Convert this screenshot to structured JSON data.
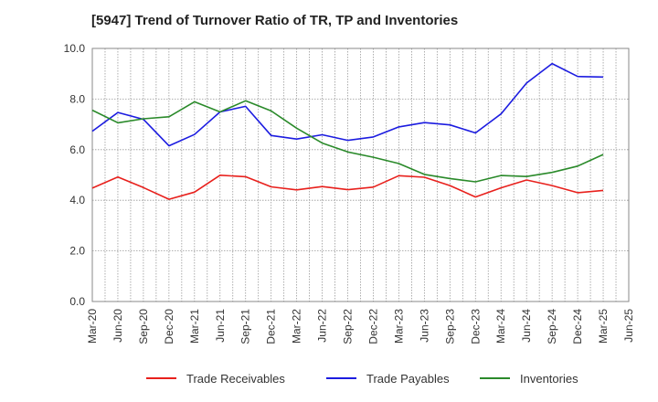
{
  "chart_data": {
    "type": "line",
    "title": "[5947]  Trend of Turnover Ratio of TR, TP and Inventories",
    "xlabel": "",
    "ylabel": "",
    "ylim": [
      0,
      10
    ],
    "yticks": [
      "0.0",
      "2.0",
      "4.0",
      "6.0",
      "8.0",
      "10.0"
    ],
    "xtick_labels": [
      "Mar-20",
      "Jun-20",
      "Sep-20",
      "Dec-20",
      "Mar-21",
      "Jun-21",
      "Sep-21",
      "Dec-21",
      "Mar-22",
      "Jun-22",
      "Sep-22",
      "Dec-22",
      "Mar-23",
      "Jun-23",
      "Sep-23",
      "Dec-23",
      "Mar-24",
      "Jun-24",
      "Sep-24",
      "Dec-24",
      "Mar-25",
      "Jun-25"
    ],
    "x": [
      "Mar-20",
      "Jun-20",
      "Sep-20",
      "Dec-20",
      "Mar-21",
      "Jun-21",
      "Sep-21",
      "Dec-21",
      "Mar-22",
      "Jun-22",
      "Sep-22",
      "Dec-22",
      "Mar-23",
      "Jun-23",
      "Sep-23",
      "Dec-23",
      "Mar-24",
      "Jun-24",
      "Sep-24",
      "Dec-24",
      "Mar-25"
    ],
    "grid": true,
    "legend_position": "bottom",
    "series": [
      {
        "name": "Trade Receivables",
        "color": "#e8201c",
        "values": [
          4.48,
          4.92,
          4.5,
          4.04,
          4.32,
          4.99,
          4.93,
          4.53,
          4.41,
          4.54,
          4.42,
          4.52,
          4.97,
          4.91,
          4.58,
          4.13,
          4.49,
          4.8,
          4.58,
          4.3,
          4.39
        ]
      },
      {
        "name": "Trade Payables",
        "color": "#1c1ce0",
        "values": [
          6.73,
          7.47,
          7.2,
          6.15,
          6.6,
          7.49,
          7.71,
          6.56,
          6.42,
          6.59,
          6.37,
          6.5,
          6.9,
          7.07,
          6.98,
          6.66,
          7.41,
          8.63,
          9.4,
          8.89,
          8.87
        ]
      },
      {
        "name": "Inventories",
        "color": "#2a8a2a",
        "values": [
          7.56,
          7.06,
          7.22,
          7.3,
          7.89,
          7.49,
          7.93,
          7.53,
          6.85,
          6.26,
          5.91,
          5.7,
          5.45,
          5.02,
          4.86,
          4.73,
          4.98,
          4.94,
          5.1,
          5.35,
          5.81
        ]
      }
    ]
  }
}
